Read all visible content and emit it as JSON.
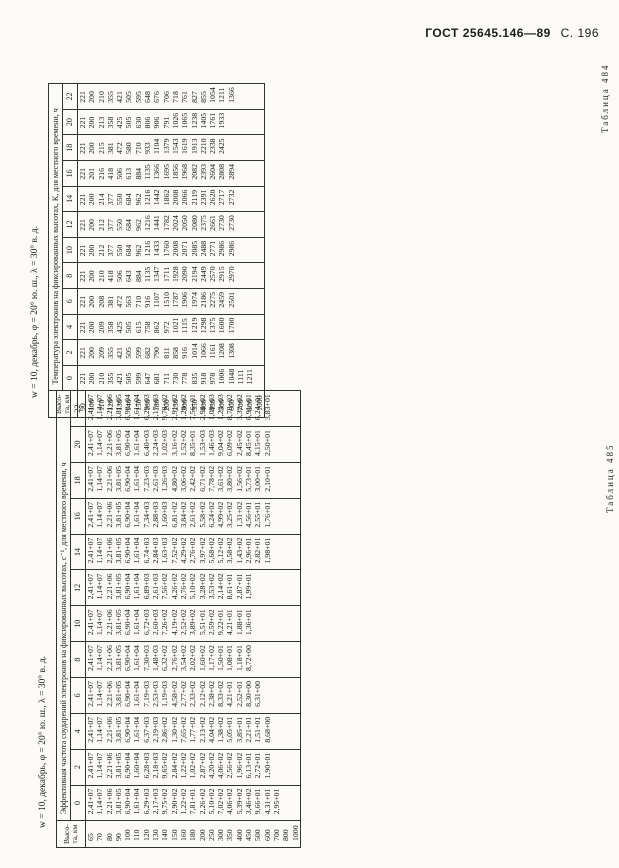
{
  "header": {
    "title": "ГОСТ 25645.146—89",
    "page": "С. 196"
  },
  "table484": {
    "label": "Таблица 484",
    "conditions": "w = 10, декабрь, φ = 20° ю. ш., λ = 30° в. д.",
    "caption": "Температура электронов на фиксированных высотах, К, для местного времени, ч",
    "stub_header": "Высо-та, км",
    "columns": [
      "0",
      "2",
      "4",
      "6",
      "8",
      "10",
      "12",
      "14",
      "16",
      "18",
      "20",
      "22"
    ],
    "heights": [
      "90",
      "100",
      "110",
      "120",
      "130",
      "140",
      "150",
      "160",
      "180",
      "200",
      "250",
      "300",
      "350",
      "400",
      "450",
      "500",
      "600",
      "700",
      "800",
      "1000"
    ],
    "values": [
      "221\n200\n210\n355\n421\n505\n599\n647\n681\n711\n730\n778\n835\n918\n978\n1006\n1048\n1111\n1211",
      "221\n200\n209\n355\n421\n505\n599\n682\n790\n811\n858\n916\n1014\n1066\n1161\n1208\n1308",
      "221\n200\n209\n358\n425\n505\n615\n758\n862\n972\n1021\n1115\n1219\n1298\n1375\n1600\n1700",
      "221\n200\n208\n381\n472\n563\n710\n916\n1107\n1510\n1787\n1906\n1974\n2186\n2275\n2459\n2501",
      "221\n200\n210\n418\n506\n643\n884\n1135\n1347\n1711\n1928\n2090\n2194\n2449\n2570\n2915\n2970",
      "221\n200\n212\n377\n550\n684\n962\n1216\n1433\n1760\n2008\n2071\n2085\n2488\n2771\n2986\n2986",
      "221\n200\n212\n377\n550\n684\n962\n1216\n1441\n1782\n2024\n2050\n2080\n2375\n2661\n2730\n2730",
      "221\n200\n214\n377\n550\n684\n962\n1216\n1442\n1862\n2008\n2066\n2119\n2391\n2620\n2717\n2732",
      "221\n201\n216\n418\n506\n613\n884\n1135\n1366\n1695\n1856\n1968\n2082\n2393\n2604\n2808\n2894",
      "221\n200\n215\n381\n472\n580\n710\n933\n1104\n1379\n1543\n1619\n1913\n2210\n2338\n2425",
      "221\n200\n213\n358\n425\n505\n630\n806\n906\n791\n1026\n1065\n1238\n1405\n1761\n1933",
      "221\n200\n210\n355\n421\n505\n595\n648\n676\n706\n718\n761\n827\n855\n1054\n1211\n1366"
    ]
  },
  "table485": {
    "label": "Таблица 485",
    "conditions": "w = 10, декабрь, φ = 20° ю. ш., λ = 30° в. д.",
    "caption": "Эффективная частота соударений электронов на фиксированных высотах, с⁻¹, для местного времени, ч",
    "stub_header": "Высо-та, км",
    "columns": [
      "0",
      "2",
      "4",
      "6",
      "8",
      "10",
      "12",
      "14",
      "16",
      "18",
      "20",
      "22"
    ],
    "heights": [
      "65",
      "70",
      "80",
      "90",
      "100",
      "110",
      "120",
      "130",
      "140",
      "150",
      "160",
      "180",
      "200",
      "250",
      "300",
      "350",
      "400",
      "450",
      "500",
      "600",
      "700",
      "800",
      "1000"
    ],
    "values": [
      "2,41+07\n1,14+07\n2,21+06\n3,81+05\n6,90+04\n1,61+04\n6,29+03\n2,17+03\n9,75+02\n2,90+02\n1,22+02\n7,81+01\n2,26+02\n5,10+02\n7,02+02\n4,06+02\n5,39+02\n3,46+02\n9,66+01\n4,31+01\n2,95+01",
      "2,41+07\n1,14+07\n2,21+06\n3,81+05\n6,90+04\n1,60+04\n6,28+03\n2,18+03\n9,65+02\n2,84+02\n1,22+02\n1,02+02\n2,87+02\n4,20+02\n4,06+02\n2,56+02\n1,96+02\n6,13+01\n2,72+01\n1,90+01",
      "2,41+07\n1,14+07\n2,21+06\n3,81+05\n6,90+04\n1,61+04\n6,37+03\n2,19+03\n2,86+02\n1,30+02\n7,65+02\n1,77+02\n2,13+02\n4,04+02\n1,38+02\n5,05+01\n3,85+01\n2,21+01\n1,51+01\n8,68+00",
      "2,41+07\n1,14+07\n2,21+06\n3,81+05\n6,90+04\n1,61+04\n7,19+03\n2,53+03\n1,19+03\n4,58+02\n2,77+02\n2,33+02\n2,12+02\n2,38+02\n8,33+02\n4,21+01\n2,52+01\n8,30+00\n6,31+00",
      "2,41+07\n1,14+07\n2,21+06\n3,81+05\n6,90+04\n1,61+04\n7,30+03\n1,48+03\n6,32+02\n2,76+02\n3,54+02\n2,02+02\n1,60+02\n1,17+02\n1,50+01\n1,08+01\n1,18+01\n8,72+00",
      "2,41+07\n1,14+07\n2,21+06\n3,81+05\n6,90+04\n1,61+04\n6,72+03\n2,60+03\n7,26+02\n4,19+02\n2,52+02\n3,89+02\n5,51+01\n2,59+02\n9,22+01\n4,21+01\n1,88+01\n1,36+01",
      "2,41+07\n1,14+07\n2,21+06\n3,81+05\n6,90+04\n1,61+04\n6,89+03\n2,61+03\n7,56+02\n4,26+02\n2,76+02\n5,10+02\n3,28+02\n3,53+02\n2,14+02\n8,61+01\n2,87+01\n1,99+01",
      "2,41+07\n1,14+07\n2,21+06\n3,81+05\n6,90+04\n1,61+04\n6,74+03\n2,84+03\n1,63+03\n7,52+02\n4,29+02\n2,76+02\n3,97+02\n5,68+02\n5,12+02\n3,58+02\n1,43+02\n2,96+01\n2,82+01\n1,98+01",
      "2,41+07\n1,14+07\n2,21+06\n3,81+05\n6,90+04\n1,61+04\n7,34+03\n2,88+03\n1,60+03\n6,81+02\n3,84+02\n2,61+02\n5,58+02\n6,24+02\n4,99+02\n3,25+02\n1,31+02\n4,56+01\n2,55+01\n1,76+01",
      "2,41+07\n1,14+07\n2,21+06\n3,81+05\n6,90+04\n1,61+04\n7,23+03\n2,61+03\n1,26+03\n4,80+02\n3,06+02\n2,42+02\n6,71+02\n7,78+02\n3,61+02\n3,80+02\n1,56+02\n5,73+01\n3,00+01\n2,10+01",
      "2,41+07\n1,14+07\n2,21+06\n3,81+05\n6,90+04\n1,61+04\n6,40+03\n2,24+03\n1,02+03\n3,16+02\n1,52+02\n8,35+01\n1,53+03\n1,46+03\n9,04+02\n6,09+02\n2,45+02\n8,45+01\n4,15+01\n2,50+01",
      "2,41+07\n1,14+07\n2,21+06\n3,81+05\n6,90+04\n1,61+04\n6,29+03\n2,17+03\n9,78+02\n2,91+02\n1,20+02\n7,56+01\n2,98+02\n1,09+03\n1,23+03\n8,78+02\n3,32+02\n6,91+01\n6,24+01\n3,83+01"
    ]
  }
}
